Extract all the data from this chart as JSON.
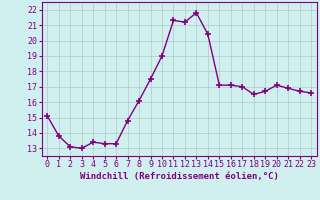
{
  "x": [
    0,
    1,
    2,
    3,
    4,
    5,
    6,
    7,
    8,
    9,
    10,
    11,
    12,
    13,
    14,
    15,
    16,
    17,
    18,
    19,
    20,
    21,
    22,
    23
  ],
  "y": [
    15.1,
    13.8,
    13.1,
    13.0,
    13.4,
    13.3,
    13.3,
    14.8,
    16.1,
    17.5,
    19.0,
    21.3,
    21.2,
    21.8,
    20.4,
    17.1,
    17.1,
    17.0,
    16.5,
    16.7,
    17.1,
    16.9,
    16.7,
    16.6
  ],
  "line_color": "#800080",
  "marker": "+",
  "marker_size": 4,
  "bg_color": "#cff0ee",
  "grid_color": "#b0c8c8",
  "xlabel": "Windchill (Refroidissement éolien,°C)",
  "xlabel_fontsize": 6.5,
  "xtick_labels": [
    "0",
    "1",
    "2",
    "3",
    "4",
    "5",
    "6",
    "7",
    "8",
    "9",
    "10",
    "11",
    "12",
    "13",
    "14",
    "15",
    "16",
    "17",
    "18",
    "19",
    "20",
    "21",
    "22",
    "23"
  ],
  "ylim": [
    12.5,
    22.5
  ],
  "xlim": [
    -0.5,
    23.5
  ],
  "yticks": [
    13,
    14,
    15,
    16,
    17,
    18,
    19,
    20,
    21,
    22
  ],
  "tick_fontsize": 6.0,
  "line_width": 1.0
}
